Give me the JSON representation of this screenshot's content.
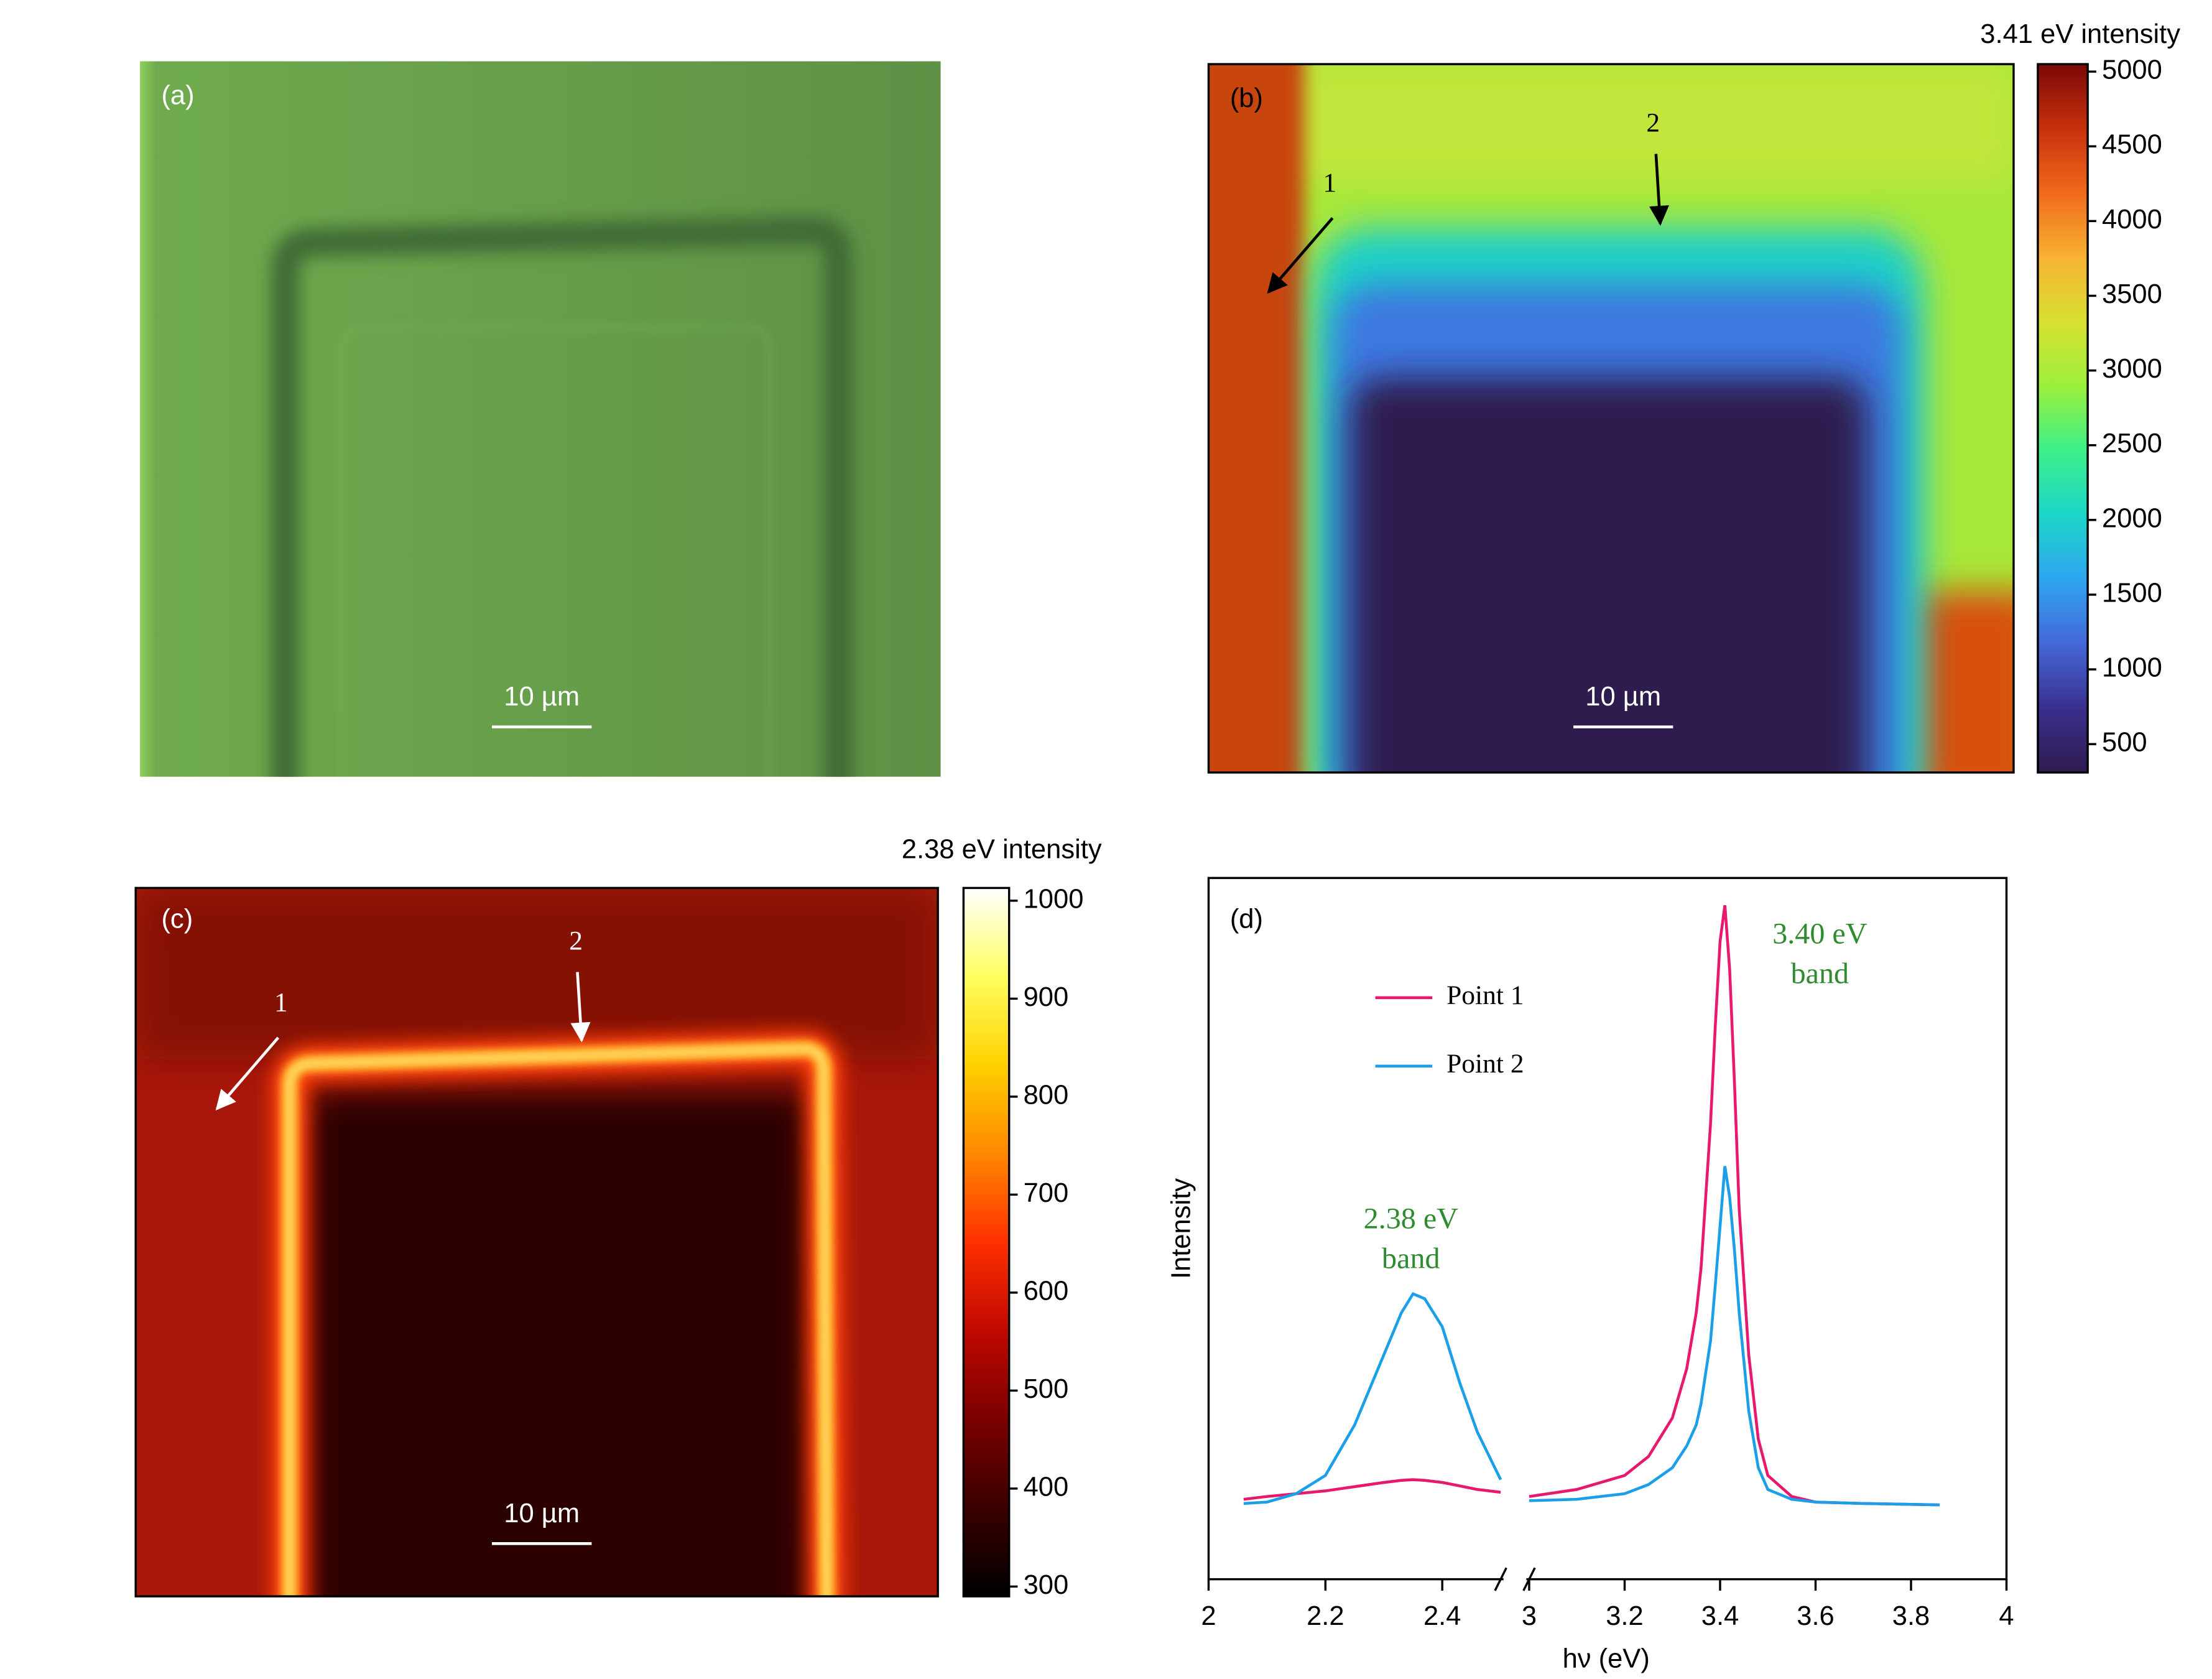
{
  "chart_data": [
    {
      "type": "image",
      "label": "(a)",
      "scale_bar": "10 µm"
    },
    {
      "type": "heatmap",
      "label": "(b)",
      "scale_bar": "10 µm",
      "annotations": [
        "1",
        "2"
      ],
      "colorbar": {
        "title": "3.41 eV intensity",
        "lim": [
          310,
          5050
        ],
        "ticks": [
          500,
          1000,
          1500,
          2000,
          2500,
          3000,
          3500,
          4000,
          4500,
          5000
        ],
        "colormap": [
          "#2f1b4f",
          "#3b2f8f",
          "#4468d8",
          "#2fa5f0",
          "#1cd6c8",
          "#3cf08a",
          "#9bef3c",
          "#d8e030",
          "#f7b233",
          "#f06a1c",
          "#c8300c",
          "#7a0808"
        ]
      }
    },
    {
      "type": "heatmap",
      "label": "(c)",
      "scale_bar": "10 µm",
      "annotations": [
        "1",
        "2"
      ],
      "colorbar": {
        "title": "2.38 eV intensity",
        "lim": [
          290,
          1013
        ],
        "ticks": [
          300,
          400,
          500,
          600,
          700,
          800,
          900,
          1000
        ],
        "colormap": [
          "#000000",
          "#3a0000",
          "#7a0000",
          "#c00800",
          "#ff3000",
          "#ff8800",
          "#ffd000",
          "#ffff60",
          "#ffffff"
        ]
      }
    },
    {
      "type": "line",
      "label": "(d)",
      "x_label": "hν (eV)",
      "y_label": "Intensity",
      "xlim": [
        2,
        4
      ],
      "xbreak": [
        2.5,
        3
      ],
      "xticks": [
        2,
        2.2,
        2.4,
        3,
        3.2,
        3.4,
        3.6,
        3.8,
        4
      ],
      "ylim": [
        0,
        1
      ],
      "annotations": [
        "2.38 eV",
        "band",
        "3.40 eV",
        "band"
      ],
      "x": [
        2.06,
        2.1,
        2.15,
        2.2,
        2.25,
        2.3,
        2.33,
        2.35,
        2.37,
        2.4,
        2.43,
        2.46,
        2.5,
        2.75,
        3.0,
        3.1,
        3.2,
        3.25,
        3.3,
        3.33,
        3.35,
        3.36,
        3.38,
        3.39,
        3.4,
        3.41,
        3.42,
        3.43,
        3.44,
        3.46,
        3.48,
        3.5,
        3.55,
        3.6,
        3.7,
        3.86
      ],
      "series": [
        {
          "name": "Point 1",
          "color": "#e8186e",
          "values": [
            0.114,
            0.118,
            0.122,
            0.126,
            0.132,
            0.138,
            0.141,
            0.142,
            0.141,
            0.138,
            0.133,
            0.128,
            0.124,
            null,
            0.118,
            0.128,
            0.148,
            0.175,
            0.23,
            0.3,
            0.38,
            0.443,
            0.65,
            0.79,
            0.91,
            0.961,
            0.87,
            0.71,
            0.528,
            0.32,
            0.2,
            0.148,
            0.118,
            0.11,
            0.108,
            0.106
          ]
        },
        {
          "name": "Point 2",
          "color": "#1a9fe8",
          "values": [
            0.108,
            0.11,
            0.122,
            0.148,
            0.22,
            0.32,
            0.38,
            0.407,
            0.4,
            0.36,
            0.28,
            0.21,
            0.142,
            null,
            0.112,
            0.114,
            0.122,
            0.135,
            0.159,
            0.19,
            0.22,
            0.25,
            0.34,
            0.42,
            0.504,
            0.589,
            0.545,
            0.47,
            0.38,
            0.24,
            0.159,
            0.128,
            0.114,
            0.11,
            0.108,
            0.106
          ]
        }
      ]
    }
  ]
}
